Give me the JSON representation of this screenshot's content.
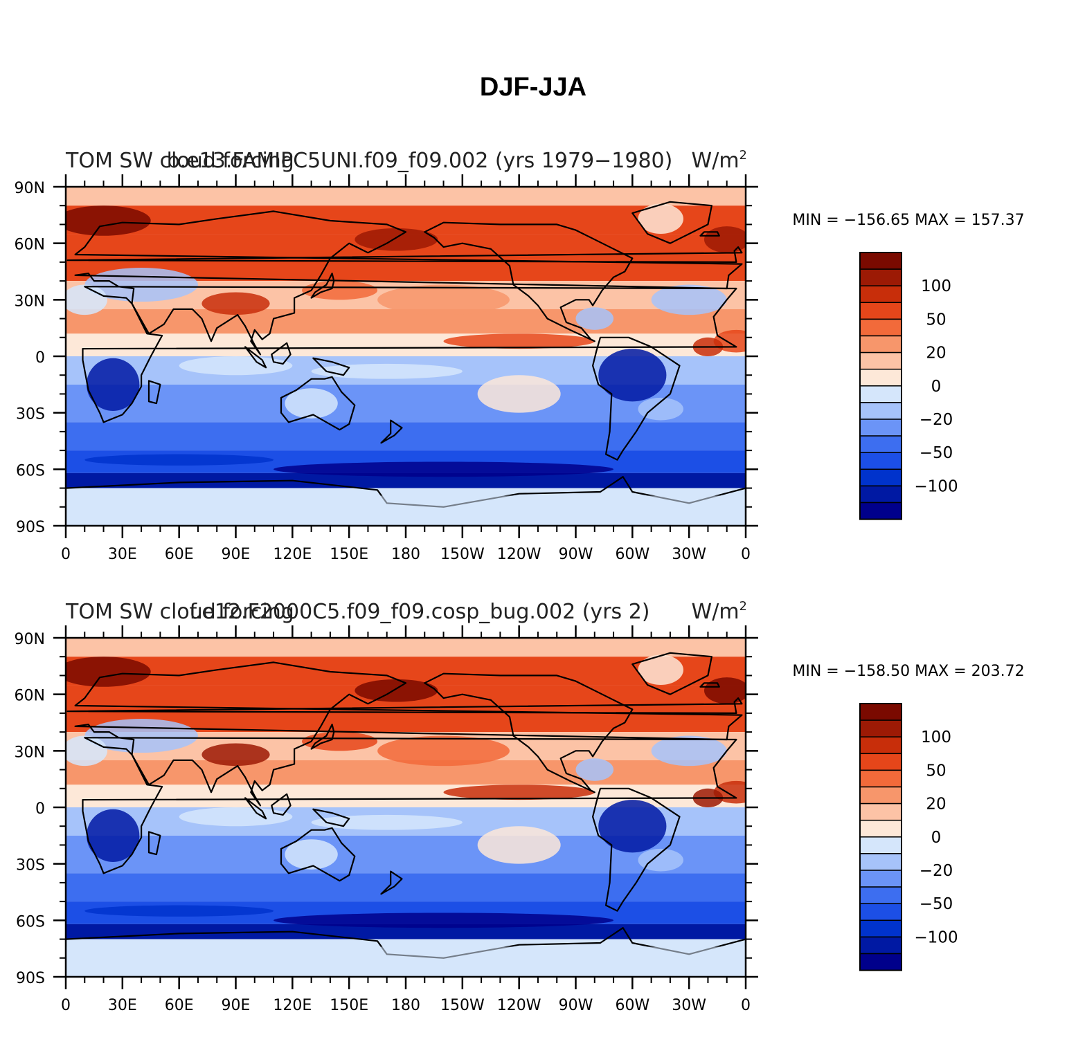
{
  "page": {
    "title": "DJF-JJA"
  },
  "colors": {
    "outline": "#000000",
    "scale": [
      "#00008b",
      "#0019a3",
      "#0033cc",
      "#1c4fe6",
      "#3d6ef0",
      "#6b94f7",
      "#a6c3fa",
      "#d5e6fb",
      "#fde8d8",
      "#fcc3a6",
      "#f7966b",
      "#f26a3a",
      "#e6461a",
      "#c82e0a",
      "#9c1a05",
      "#7a0a00"
    ]
  },
  "axes": {
    "lat_labels": [
      "90N",
      "60N",
      "30N",
      "0",
      "30S",
      "60S",
      "90S"
    ],
    "lon_labels": [
      "0",
      "30E",
      "60E",
      "90E",
      "120E",
      "150E",
      "180",
      "150W",
      "120W",
      "90W",
      "60W",
      "30W",
      "0"
    ]
  },
  "colorbar": {
    "labels": [
      "100",
      "50",
      "20",
      "0",
      "−20",
      "−50",
      "−100"
    ],
    "levels": [
      100,
      50,
      20,
      0,
      -20,
      -50,
      -100
    ]
  },
  "panels": [
    {
      "title_left": "TOM SW cloud forcing",
      "title_case": "b.e13.FAMIPC5UNI.f09_f09.002 (yrs 1979−1980)",
      "title_units": "W/m",
      "title_units_sup": "2",
      "stats": "MIN = −156.65 MAX = 157.37",
      "min": -156.65,
      "max": 157.37
    },
    {
      "title_left": "TOM SW cloud forcing",
      "title_case": "f.e12.F2000C5.f09_f09.cosp_bug.002 (yrs 2)",
      "title_units": "W/m",
      "title_units_sup": "2",
      "stats": "MIN = −158.50 MAX = 203.72",
      "min": -158.5,
      "max": 203.72
    }
  ]
}
